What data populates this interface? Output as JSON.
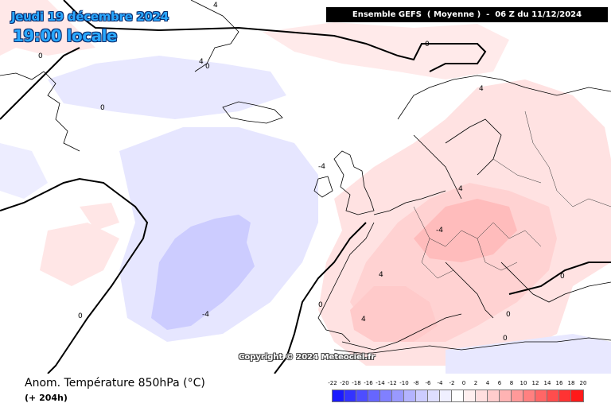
{
  "header": {
    "date": "Jeudi 19 décembre 2024",
    "local_time": "19:00 locale",
    "run_info": "Ensemble GEFS  ( Moyenne )  -  06 Z du 11/12/2024"
  },
  "map": {
    "copyright": "Copyright © 2024 Meteociel.fr",
    "contour_labels": [
      "0",
      "0",
      "0",
      "0",
      "0",
      "0",
      "4",
      "4",
      "4",
      "4",
      "4",
      "-4",
      "-4",
      "0",
      "0",
      "4",
      "-4",
      "0"
    ]
  },
  "footer": {
    "parameter": "Anom. Température 850hPa (°C)",
    "lead_time": "(+ 204h)"
  },
  "legend": {
    "labels": [
      "-22",
      "-20",
      "-18",
      "-16",
      "-14",
      "-12",
      "-10",
      "-8",
      "-6",
      "-4",
      "-2",
      "0",
      "2",
      "4",
      "6",
      "8",
      "10",
      "12",
      "14",
      "16",
      "18",
      "20"
    ],
    "colors": [
      "#1a1aff",
      "#3333ff",
      "#4d4dff",
      "#6666ff",
      "#8080ff",
      "#9999ff",
      "#b3b3ff",
      "#ccccff",
      "#dedeff",
      "#efefff",
      "#ffffff",
      "#ffefef",
      "#ffdede",
      "#ffcccc",
      "#ffb3b3",
      "#ff9999",
      "#ff8080",
      "#ff6666",
      "#ff4d4d",
      "#ff3333",
      "#ff1a1a"
    ]
  }
}
